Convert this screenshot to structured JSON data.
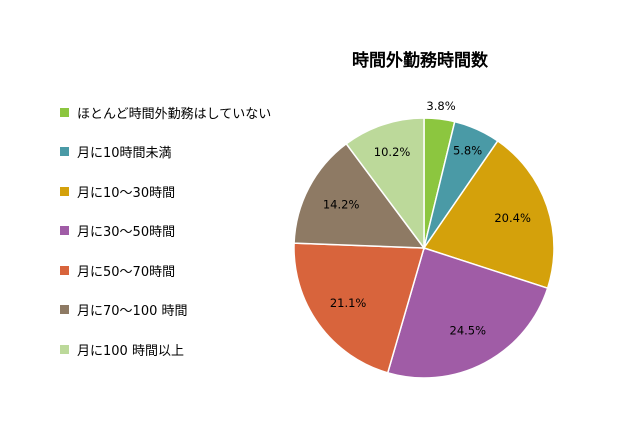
{
  "chart_data": {
    "type": "pie",
    "title": "時間外勤務時間数",
    "categories": [
      "ほとんど時間外勤務はしていない",
      "月に10時間未満",
      "月に10～30時間",
      "月に30～50時間",
      "月に50～70時間",
      "月に70～100 時間",
      "月に100 時間以上"
    ],
    "values": [
      3.8,
      5.8,
      20.4,
      24.5,
      21.1,
      14.2,
      10.2
    ],
    "labels": [
      "3.8%",
      "5.8%",
      "20.4%",
      "24.5%",
      "21.1%",
      "14.2%",
      "10.2%"
    ],
    "colors": [
      "#8cc63f",
      "#4a9aa6",
      "#d4a10b",
      "#a05ca6",
      "#d8643c",
      "#8e7a64",
      "#bcd99a"
    ],
    "legend_position": "left",
    "start": "12 o'clock, clockwise"
  }
}
